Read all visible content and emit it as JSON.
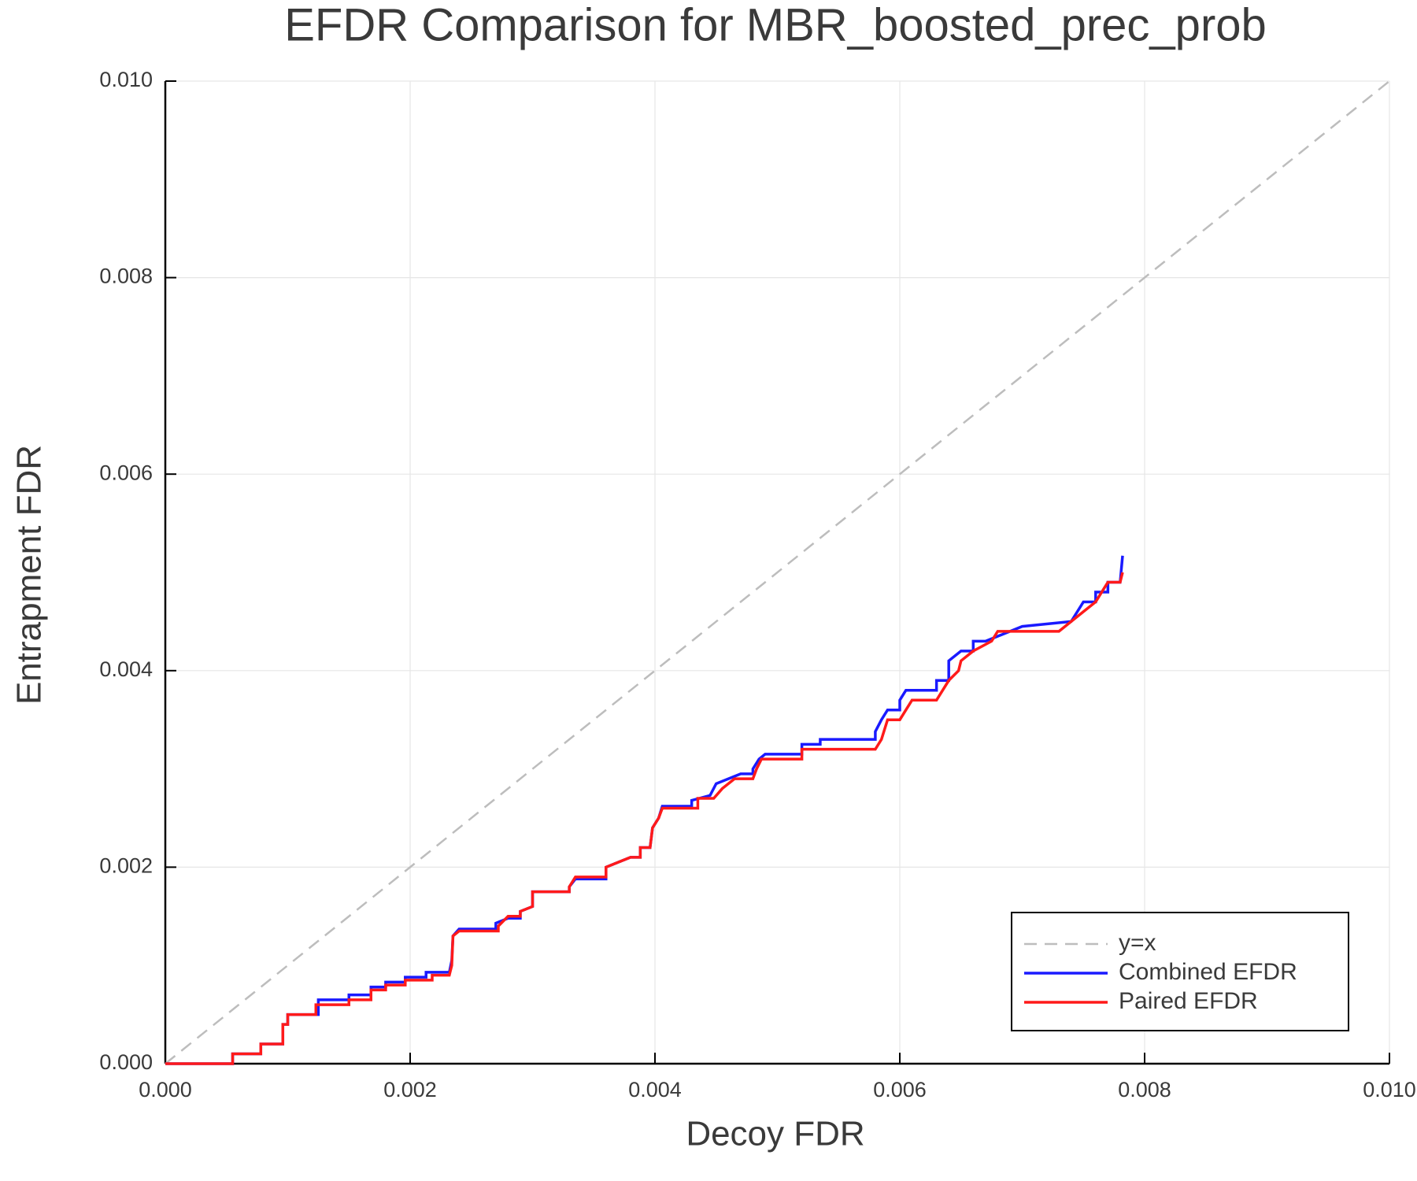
{
  "chart_data": {
    "type": "line",
    "title": "EFDR Comparison for MBR_boosted_prec_prob",
    "x_label": "Decoy FDR",
    "y_label": "Entrapment FDR",
    "xlim": [
      0,
      0.01
    ],
    "ylim": [
      0,
      0.01
    ],
    "xticks": [
      {
        "value": 0,
        "label": "0.000"
      },
      {
        "value": 0.002,
        "label": "0.002"
      },
      {
        "value": 0.004,
        "label": "0.004"
      },
      {
        "value": 0.006,
        "label": "0.006"
      },
      {
        "value": 0.008,
        "label": "0.008"
      },
      {
        "value": 0.01,
        "label": "0.010"
      }
    ],
    "yticks": [
      {
        "value": 0,
        "label": "0.000"
      },
      {
        "value": 0.002,
        "label": "0.002"
      },
      {
        "value": 0.004,
        "label": "0.004"
      },
      {
        "value": 0.006,
        "label": "0.006"
      },
      {
        "value": 0.008,
        "label": "0.008"
      },
      {
        "value": 0.01,
        "label": "0.010"
      }
    ],
    "grid": true,
    "legend": "lower right",
    "series": [
      {
        "name": "y=x",
        "color": "#bdbdbd",
        "dash": true,
        "x": [
          0,
          0.01
        ],
        "values": [
          0,
          0.01
        ]
      },
      {
        "name": "Combined EFDR",
        "color": "#1a1aff",
        "x": [
          0,
          0.00055,
          0.00055,
          0.00078,
          0.00078,
          0.00096,
          0.00096,
          0.001,
          0.001,
          0.00125,
          0.00125,
          0.0015,
          0.0015,
          0.00168,
          0.00168,
          0.0018,
          0.0018,
          0.00196,
          0.00196,
          0.00213,
          0.00213,
          0.00232,
          0.00234,
          0.00235,
          0.0024,
          0.0027,
          0.0027,
          0.0028,
          0.0029,
          0.0029,
          0.003,
          0.003,
          0.0033,
          0.0033,
          0.00335,
          0.0036,
          0.0036,
          0.0037,
          0.0038,
          0.00388,
          0.00388,
          0.00396,
          0.00398,
          0.00403,
          0.00406,
          0.0043,
          0.0043,
          0.00445,
          0.0045,
          0.0046,
          0.0047,
          0.0048,
          0.0048,
          0.00485,
          0.0049,
          0.0052,
          0.0052,
          0.00535,
          0.00535,
          0.0058,
          0.0058,
          0.00585,
          0.0059,
          0.006,
          0.006,
          0.00605,
          0.0061,
          0.0063,
          0.0063,
          0.0064,
          0.0064,
          0.0065,
          0.0066,
          0.0066,
          0.0067,
          0.0068,
          0.0068,
          0.007,
          0.007,
          0.0074,
          0.0074,
          0.0075,
          0.0076,
          0.0076,
          0.0077,
          0.0077,
          0.0078,
          0.00782
        ],
        "values": [
          0,
          0,
          0.0001,
          0.0001,
          0.0002,
          0.0002,
          0.0004,
          0.0004,
          0.0005,
          0.0005,
          0.00065,
          0.00065,
          0.0007,
          0.0007,
          0.00078,
          0.00078,
          0.00083,
          0.00083,
          0.00088,
          0.00088,
          0.00093,
          0.00093,
          0.00105,
          0.0013,
          0.00137,
          0.00137,
          0.00143,
          0.00148,
          0.00148,
          0.00155,
          0.0016,
          0.00175,
          0.00175,
          0.0018,
          0.00188,
          0.00188,
          0.002,
          0.00205,
          0.0021,
          0.0021,
          0.0022,
          0.0022,
          0.0024,
          0.0025,
          0.00262,
          0.00262,
          0.00268,
          0.00273,
          0.00285,
          0.0029,
          0.00295,
          0.00295,
          0.003,
          0.0031,
          0.00315,
          0.00315,
          0.00325,
          0.00325,
          0.0033,
          0.0033,
          0.00338,
          0.0035,
          0.0036,
          0.0036,
          0.0037,
          0.0038,
          0.0038,
          0.0038,
          0.0039,
          0.0039,
          0.0041,
          0.0042,
          0.0042,
          0.0043,
          0.0043,
          0.00435,
          0.00435,
          0.00445,
          0.00445,
          0.0045,
          0.0045,
          0.0047,
          0.0047,
          0.0048,
          0.0048,
          0.0049,
          0.0049,
          0.00517
        ]
      },
      {
        "name": "Paired EFDR",
        "color": "#ff1a1a",
        "x": [
          0,
          0.00055,
          0.00055,
          0.00078,
          0.00078,
          0.00096,
          0.00096,
          0.001,
          0.001,
          0.00123,
          0.00123,
          0.0015,
          0.0015,
          0.00168,
          0.00168,
          0.0018,
          0.0018,
          0.00196,
          0.00196,
          0.00218,
          0.00218,
          0.00232,
          0.00234,
          0.00235,
          0.0024,
          0.00272,
          0.00272,
          0.0028,
          0.0029,
          0.0029,
          0.003,
          0.003,
          0.0033,
          0.0033,
          0.00335,
          0.0036,
          0.0036,
          0.0037,
          0.0038,
          0.00388,
          0.00388,
          0.00396,
          0.00398,
          0.00403,
          0.00406,
          0.00435,
          0.00435,
          0.00448,
          0.00455,
          0.00465,
          0.0048,
          0.00483,
          0.00487,
          0.0052,
          0.0052,
          0.0058,
          0.00585,
          0.0059,
          0.006,
          0.00605,
          0.0061,
          0.0063,
          0.0064,
          0.00648,
          0.0065,
          0.0066,
          0.00675,
          0.0068,
          0.0073,
          0.0074,
          0.0075,
          0.0076,
          0.0077,
          0.0078,
          0.00782
        ],
        "values": [
          0,
          0,
          0.0001,
          0.0001,
          0.0002,
          0.0002,
          0.0004,
          0.0004,
          0.0005,
          0.0005,
          0.0006,
          0.0006,
          0.00065,
          0.00065,
          0.00075,
          0.00075,
          0.0008,
          0.0008,
          0.00085,
          0.00085,
          0.0009,
          0.0009,
          0.001,
          0.0013,
          0.00135,
          0.00135,
          0.0014,
          0.0015,
          0.0015,
          0.00155,
          0.0016,
          0.00175,
          0.00175,
          0.0018,
          0.0019,
          0.0019,
          0.002,
          0.00205,
          0.0021,
          0.0021,
          0.0022,
          0.0022,
          0.0024,
          0.0025,
          0.0026,
          0.0026,
          0.0027,
          0.0027,
          0.0028,
          0.0029,
          0.0029,
          0.003,
          0.0031,
          0.0031,
          0.0032,
          0.0032,
          0.0033,
          0.0035,
          0.0035,
          0.0036,
          0.0037,
          0.0037,
          0.0039,
          0.004,
          0.0041,
          0.0042,
          0.0043,
          0.0044,
          0.0044,
          0.0045,
          0.0046,
          0.0047,
          0.0049,
          0.0049,
          0.005
        ]
      }
    ]
  }
}
